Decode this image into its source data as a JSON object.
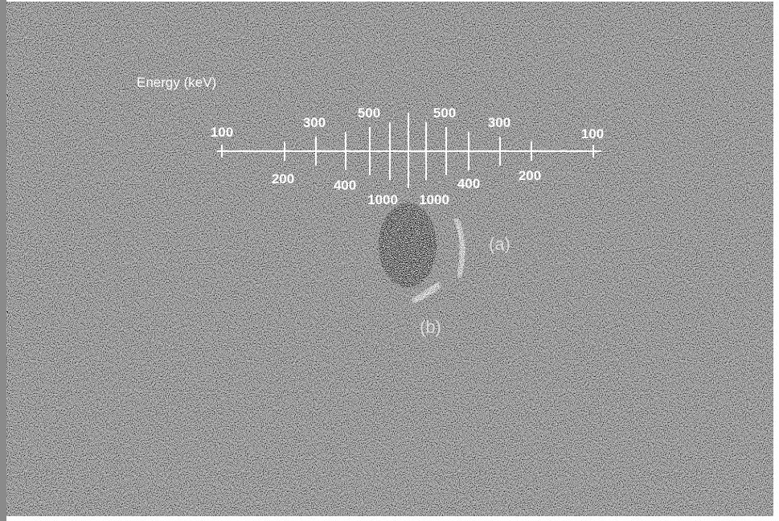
{
  "scale": {
    "title": "Energy (keV)",
    "left_labels": [
      "100",
      "200",
      "300",
      "400",
      "500",
      "1000"
    ],
    "right_labels": [
      "1000",
      "500",
      "400",
      "300",
      "200",
      "100"
    ]
  },
  "regions": [
    "(a)",
    "(b)"
  ]
}
